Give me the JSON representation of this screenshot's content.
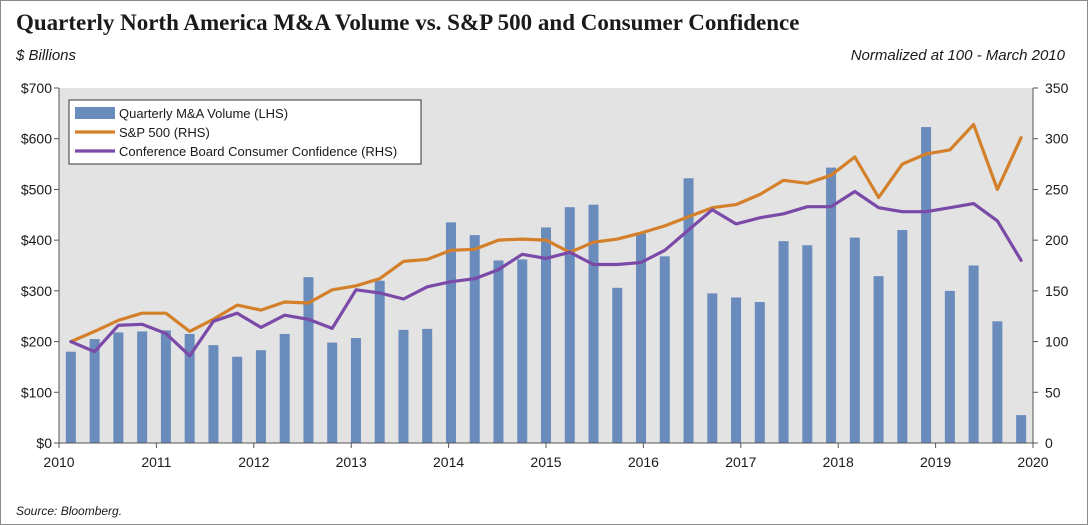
{
  "header": {
    "title": "Quarterly North America M&A Volume vs. S&P 500 and Consumer Confidence",
    "units_left": "$ Billions",
    "units_right": "Normalized at 100 - March 2010"
  },
  "footer": {
    "source": "Source: Bloomberg."
  },
  "colors": {
    "plot_bg": "#e3e3e3",
    "bar": "#6a8cbd",
    "sp500": "#d4802a",
    "confidence": "#7b4aa8"
  },
  "chart_data": {
    "type": "bar",
    "x_tick_labels": [
      "2010",
      "2011",
      "2012",
      "2013",
      "2014",
      "2015",
      "2016",
      "2017",
      "2018",
      "2019",
      "2020"
    ],
    "y_left_ticks": [
      "$0",
      "$100",
      "$200",
      "$300",
      "$400",
      "$500",
      "$600",
      "$700"
    ],
    "y_left_lim": [
      0,
      700
    ],
    "y_right_ticks": [
      "0",
      "50",
      "100",
      "150",
      "200",
      "250",
      "300",
      "350"
    ],
    "y_right_lim": [
      0,
      350
    ],
    "grid": false,
    "legend_position": "top-left",
    "series": [
      {
        "name": "Quarterly M&A Volume (LHS)",
        "type": "bar",
        "axis": "left",
        "values": [
          180,
          205,
          218,
          220,
          222,
          215,
          193,
          170,
          183,
          215,
          327,
          198,
          207,
          320,
          223,
          225,
          435,
          410,
          360,
          362,
          425,
          465,
          470,
          306,
          413,
          368,
          522,
          295,
          287,
          278,
          398,
          390,
          543,
          405,
          329,
          420,
          623,
          300,
          350,
          240,
          55
        ]
      },
      {
        "name": "S&P 500 (RHS)",
        "type": "line",
        "axis": "right",
        "values": [
          100,
          110,
          121,
          128,
          128,
          110,
          122,
          136,
          131,
          139,
          138,
          151,
          155,
          162,
          179,
          181,
          190,
          191,
          200,
          201,
          200,
          188,
          198,
          201,
          207,
          214,
          223,
          232,
          235,
          245,
          259,
          256,
          264,
          282,
          242,
          275,
          285,
          289,
          314,
          250,
          301
        ]
      },
      {
        "name": "Conference Board Consumer Confidence (RHS)",
        "type": "line",
        "axis": "right",
        "values": [
          100,
          90,
          116,
          117,
          108,
          86,
          120,
          128,
          114,
          126,
          122,
          113,
          151,
          148,
          142,
          154,
          159,
          162,
          171,
          186,
          182,
          188,
          176,
          176,
          178,
          190,
          210,
          230,
          216,
          222,
          226,
          233,
          233,
          248,
          232,
          228,
          228,
          232,
          236,
          219,
          180
        ]
      }
    ]
  }
}
